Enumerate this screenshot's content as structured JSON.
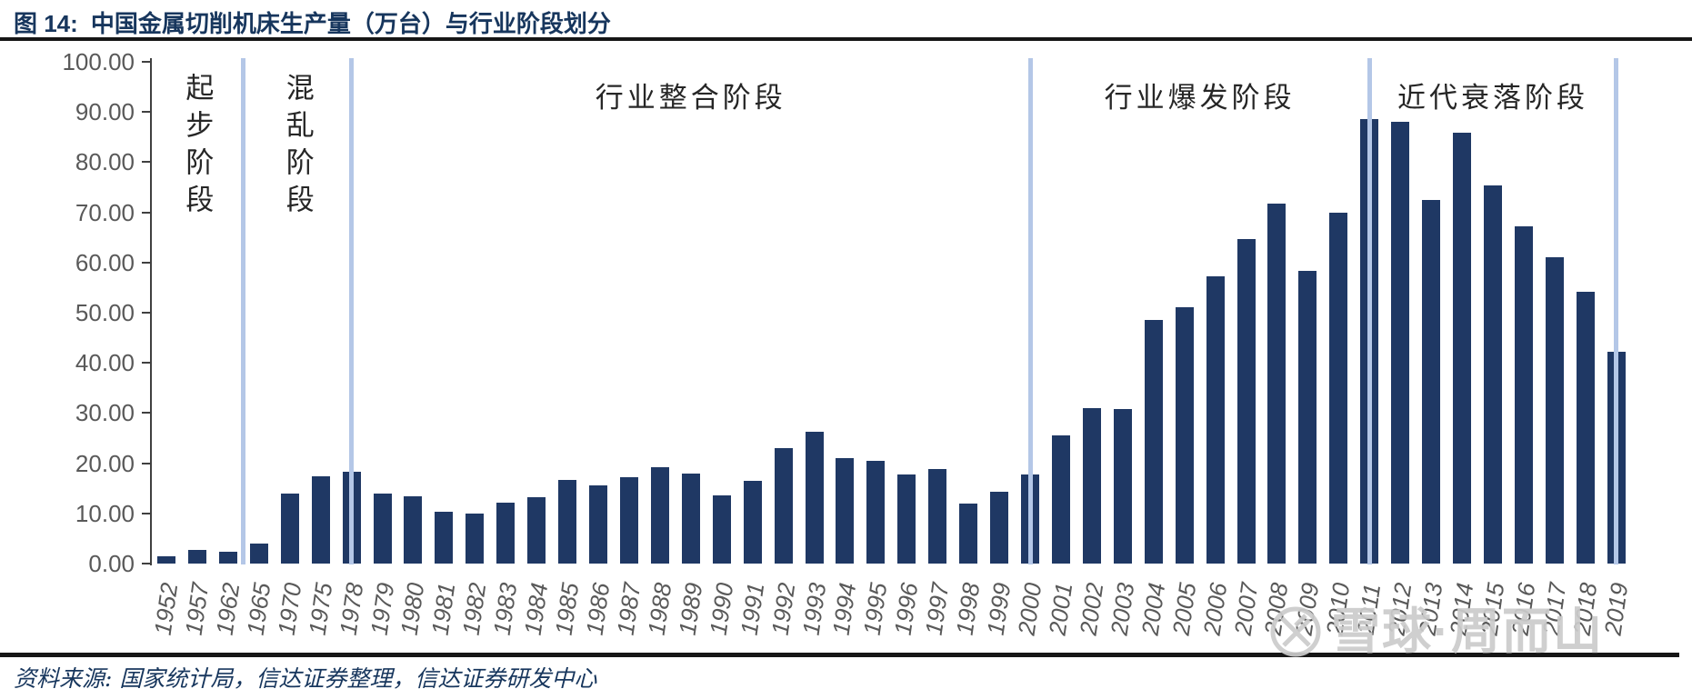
{
  "figure": {
    "label": "图 14:",
    "title": "中国金属切削机床生产量（万台）与行业阶段划分"
  },
  "source_note": "资料来源: 国家统计局，信达证券整理，信达证券研发中心",
  "watermark": {
    "logo": "xueqiu-snowball-logo",
    "text": "雪球·周而山"
  },
  "colors": {
    "bar": "#1f3864",
    "divider": "#b4c7e7",
    "title": "#17365d",
    "axis_label": "#595959",
    "axis_line": "#404040",
    "phase_label": "#262626",
    "rule": "#161616",
    "watermark": "#cccccc"
  },
  "chart_data": {
    "type": "bar",
    "title": "中国金属切削机床生产量（万台）与行业阶段划分",
    "unit": "万台",
    "ylabel": "",
    "xlabel": "",
    "ylim": [
      0,
      100
    ],
    "ytick_step": 10,
    "ytick_labels": [
      "100.00",
      "90.00",
      "80.00",
      "70.00",
      "60.00",
      "50.00",
      "40.00",
      "30.00",
      "20.00",
      "10.00",
      "0.00"
    ],
    "grid": false,
    "legend": "none",
    "categories": [
      "1952",
      "1957",
      "1962",
      "1965",
      "1970",
      "1975",
      "1978",
      "1979",
      "1980",
      "1981",
      "1982",
      "1983",
      "1984",
      "1985",
      "1986",
      "1987",
      "1988",
      "1989",
      "1990",
      "1991",
      "1992",
      "1993",
      "1994",
      "1995",
      "1996",
      "1997",
      "1998",
      "1999",
      "2000",
      "2001",
      "2002",
      "2003",
      "2004",
      "2005",
      "2006",
      "2007",
      "2008",
      "2009",
      "2010",
      "2011",
      "2012",
      "2013",
      "2014",
      "2015",
      "2016",
      "2017",
      "2018",
      "2019"
    ],
    "values": [
      1.4,
      2.8,
      2.3,
      3.9,
      14.0,
      17.4,
      18.3,
      14.0,
      13.4,
      10.3,
      10.0,
      12.1,
      13.3,
      16.7,
      15.6,
      17.2,
      19.2,
      18.0,
      13.5,
      16.5,
      23.0,
      26.2,
      21.0,
      20.4,
      17.8,
      18.8,
      12.0,
      14.4,
      17.7,
      25.6,
      31.0,
      30.8,
      48.6,
      51.0,
      57.3,
      64.6,
      71.8,
      58.4,
      69.9,
      88.5,
      88.0,
      72.5,
      85.8,
      75.4,
      67.3,
      61.0,
      54.2,
      42.2
    ],
    "phase_dividers": [
      {
        "between": [
          "1962",
          "1965"
        ]
      },
      {
        "at": "1978"
      },
      {
        "at": "2000"
      },
      {
        "at": "2011"
      },
      {
        "at": "2019"
      }
    ],
    "phases": [
      {
        "label": "起步阶段",
        "orientation": "vertical"
      },
      {
        "label": "混乱阶段",
        "orientation": "vertical"
      },
      {
        "label": "行业整合阶段",
        "orientation": "horizontal"
      },
      {
        "label": "行业爆发阶段",
        "orientation": "horizontal"
      },
      {
        "label": "近代衰落阶段",
        "orientation": "horizontal"
      }
    ]
  }
}
